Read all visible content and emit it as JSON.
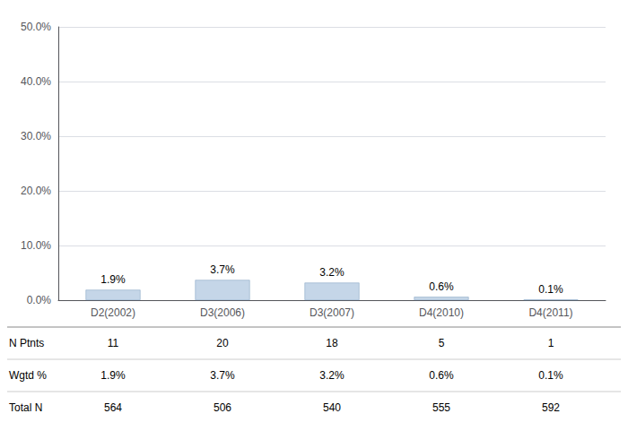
{
  "chart_data": {
    "type": "bar",
    "categories": [
      "D2(2002)",
      "D3(2006)",
      "D3(2007)",
      "D4(2010)",
      "D4(2011)"
    ],
    "values": [
      1.9,
      3.7,
      3.2,
      0.6,
      0.1
    ],
    "value_labels": [
      "1.9%",
      "3.7%",
      "3.2%",
      "0.6%",
      "0.1%"
    ],
    "data_labels": true,
    "color": "#c5d6e8",
    "ylim": [
      0,
      50
    ],
    "yticks": [
      {
        "value": 0,
        "label": "0.0%"
      },
      {
        "value": 10,
        "label": "10.0%"
      },
      {
        "value": 20,
        "label": "20.0%"
      },
      {
        "value": 30,
        "label": "30.0%"
      },
      {
        "value": 40,
        "label": "40.0%"
      },
      {
        "value": 50,
        "label": "50.0%"
      }
    ],
    "grid": true,
    "table": {
      "rows": [
        {
          "label": "N Ptnts",
          "values": [
            11,
            20,
            18,
            5,
            1
          ]
        },
        {
          "label": "Wgtd %",
          "values": [
            1.9,
            3.7,
            3.2,
            0.6,
            0.1
          ],
          "value_labels": [
            "1.9%",
            "3.7%",
            "3.2%",
            "0.6%",
            "0.1%"
          ]
        },
        {
          "label": "Total N",
          "values": [
            564,
            506,
            540,
            555,
            592
          ]
        }
      ]
    }
  }
}
